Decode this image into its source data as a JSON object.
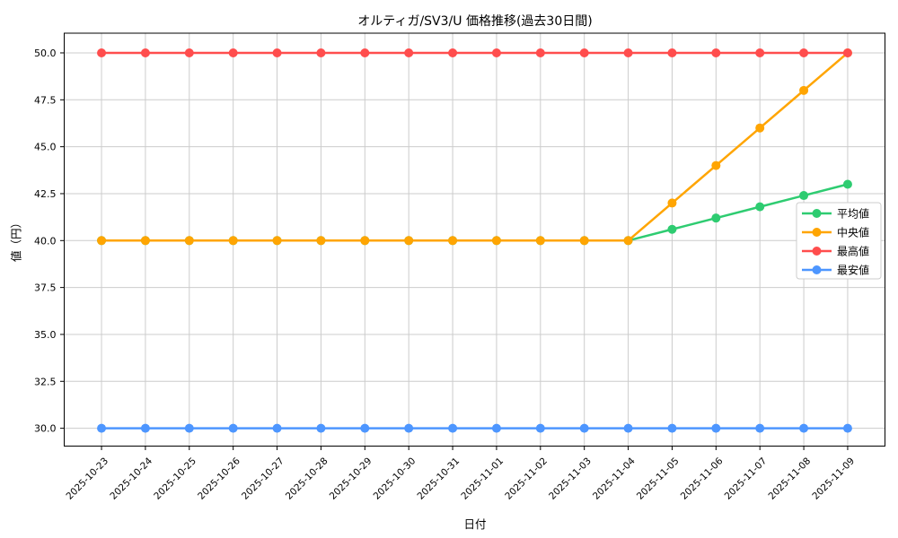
{
  "title": "オルティガ/SV3/U 価格推移(過去30日間)",
  "chart_data": {
    "type": "line",
    "title": "オルティガ/SV3/U 価格推移(過去30日間)",
    "xlabel": "日付",
    "ylabel": "値（円）",
    "categories": [
      "2025-10-23",
      "2025-10-24",
      "2025-10-25",
      "2025-10-26",
      "2025-10-27",
      "2025-10-28",
      "2025-10-29",
      "2025-10-30",
      "2025-10-31",
      "2025-11-01",
      "2025-11-02",
      "2025-11-03",
      "2025-11-04",
      "2025-11-05",
      "2025-11-06",
      "2025-11-07",
      "2025-11-08",
      "2025-11-09"
    ],
    "series": [
      {
        "name": "平均値",
        "color": "#2ecc71",
        "marker": "circle",
        "values": [
          40,
          40,
          40,
          40,
          40,
          40,
          40,
          40,
          40,
          40,
          40,
          40,
          40,
          40.6,
          41.2,
          41.8,
          42.4,
          43
        ]
      },
      {
        "name": "中央値",
        "color": "#ffa502",
        "marker": "circle",
        "values": [
          40,
          40,
          40,
          40,
          40,
          40,
          40,
          40,
          40,
          40,
          40,
          40,
          40,
          42,
          44,
          46,
          48,
          50
        ]
      },
      {
        "name": "最高値",
        "color": "#ff4d4d",
        "marker": "circle",
        "values": [
          50,
          50,
          50,
          50,
          50,
          50,
          50,
          50,
          50,
          50,
          50,
          50,
          50,
          50,
          50,
          50,
          50,
          50
        ]
      },
      {
        "name": "最安値",
        "color": "#4d96ff",
        "marker": "circle",
        "values": [
          30,
          30,
          30,
          30,
          30,
          30,
          30,
          30,
          30,
          30,
          30,
          30,
          30,
          30,
          30,
          30,
          30,
          30
        ]
      }
    ],
    "ylim": [
      29.05,
      51.05
    ],
    "yticks": [
      30,
      32.5,
      35,
      37.5,
      40,
      42.5,
      45,
      47.5,
      50
    ],
    "ytick_labels": [
      "30.0",
      "32.5",
      "35.0",
      "37.5",
      "40.0",
      "42.5",
      "45.0",
      "47.5",
      "50.0"
    ],
    "xtick_rotation_deg": 45,
    "grid": true,
    "grid_color": "#cccccc",
    "axis_color": "#000000",
    "tick_label_color": "#000000",
    "background": "#ffffff",
    "legend_position": "center right"
  }
}
